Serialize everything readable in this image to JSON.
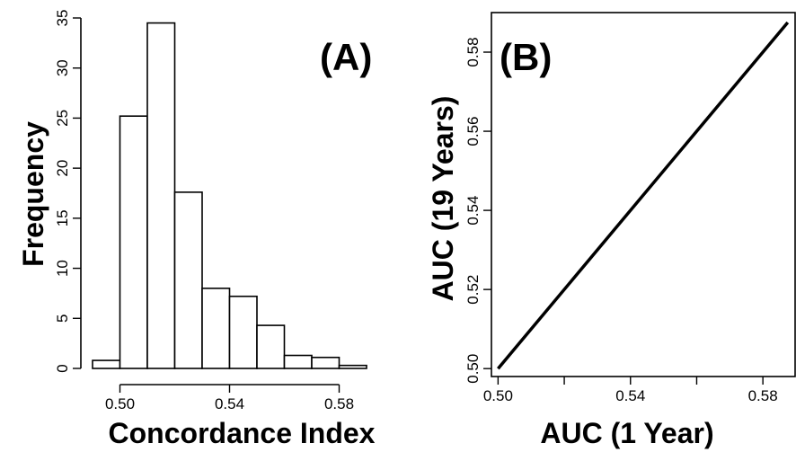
{
  "chart_data": [
    {
      "type": "bar",
      "panel_label": "(A)",
      "xlabel": "Concordance Index",
      "ylabel": "Frequency",
      "bin_edges": [
        0.49,
        0.5,
        0.51,
        0.52,
        0.53,
        0.54,
        0.55,
        0.56,
        0.57,
        0.58,
        0.59
      ],
      "values": [
        0.8,
        25.2,
        34.5,
        17.6,
        8.0,
        7.2,
        4.3,
        1.3,
        1.1,
        0.3
      ],
      "xlim": [
        0.49,
        0.59
      ],
      "ylim": [
        0,
        35
      ],
      "x_ticks": [
        0.5,
        0.54,
        0.58
      ],
      "x_tick_labels": [
        "0.50",
        "0.54",
        "0.58"
      ],
      "y_ticks": [
        0,
        5,
        10,
        15,
        20,
        25,
        30,
        35
      ],
      "y_tick_labels": [
        "0",
        "5",
        "10",
        "15",
        "20",
        "25",
        "30",
        "35"
      ]
    },
    {
      "type": "line",
      "panel_label": "(B)",
      "xlabel": "AUC (1 Year)",
      "ylabel": "AUC (19 Years)",
      "x": [
        0.5,
        0.5875
      ],
      "y": [
        0.5,
        0.5875
      ],
      "xlim": [
        0.498,
        0.59
      ],
      "ylim": [
        0.498,
        0.59
      ],
      "x_ticks": [
        0.5,
        0.52,
        0.54,
        0.56,
        0.58
      ],
      "x_tick_labels": [
        "0.50",
        "",
        "0.54",
        "",
        "0.58"
      ],
      "y_ticks": [
        0.5,
        0.52,
        0.54,
        0.56,
        0.58
      ],
      "y_tick_labels": [
        "0.50",
        "0.52",
        "0.54",
        "0.56",
        "0.58"
      ]
    }
  ]
}
